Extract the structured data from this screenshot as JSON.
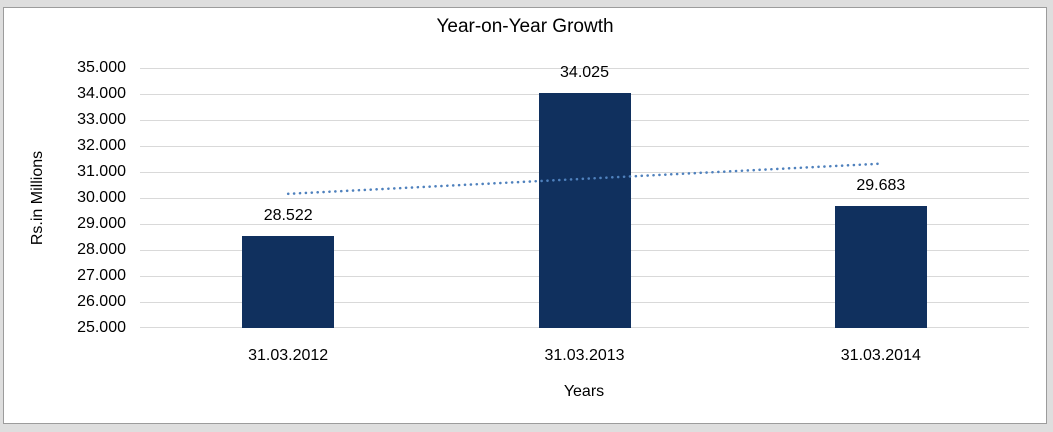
{
  "chart_data": {
    "type": "bar",
    "title": "Year-on-Year Growth",
    "xlabel": "Years",
    "ylabel": "Rs.in Millions",
    "categories": [
      "31.03.2012",
      "31.03.2013",
      "31.03.2014"
    ],
    "values": [
      28.522,
      34.025,
      29.683
    ],
    "value_labels": [
      "28.522",
      "34.025",
      "29.683"
    ],
    "ylim": [
      25,
      35
    ],
    "ytick_step": 1,
    "ytick_labels": [
      "25.000",
      "26.000",
      "27.000",
      "28.000",
      "29.000",
      "30.000",
      "31.000",
      "32.000",
      "33.000",
      "34.000",
      "35.000"
    ],
    "grid": true,
    "legend": false,
    "bar_color": "#10305E",
    "gridline_color": "#D9D9D9",
    "text_color": "#000000",
    "trendline": {
      "type": "linear",
      "style": "dotted",
      "color": "#4F81BD",
      "start_value": 30.16,
      "end_value": 31.32
    }
  }
}
